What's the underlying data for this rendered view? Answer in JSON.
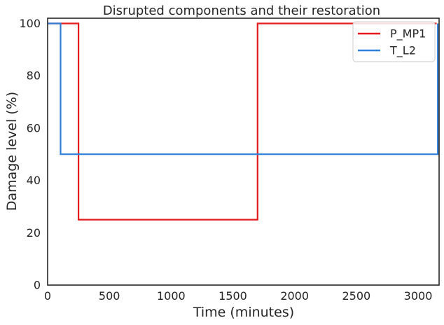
{
  "chart_data": {
    "type": "line",
    "title": "Disrupted components and their restoration",
    "xlabel": "Time (minutes)",
    "ylabel": "Damage level (%)",
    "xlim": [
      0,
      3170
    ],
    "ylim": [
      0,
      102
    ],
    "xticks": [
      0,
      500,
      1000,
      1500,
      2000,
      2500,
      3000
    ],
    "yticks": [
      0,
      20,
      40,
      60,
      80,
      100
    ],
    "grid": false,
    "legend_position": "top-right",
    "series": [
      {
        "name": "P_MP1",
        "color": "#e41a1c",
        "step": true,
        "x": [
          0,
          250,
          250,
          1700,
          1700,
          3150
        ],
        "y": [
          100,
          100,
          25,
          25,
          100,
          100
        ]
      },
      {
        "name": "T_L2",
        "color": "#2f7ed8",
        "step": true,
        "x": [
          0,
          105,
          105,
          3160,
          3160
        ],
        "y": [
          100,
          100,
          50,
          50,
          100
        ]
      }
    ]
  }
}
